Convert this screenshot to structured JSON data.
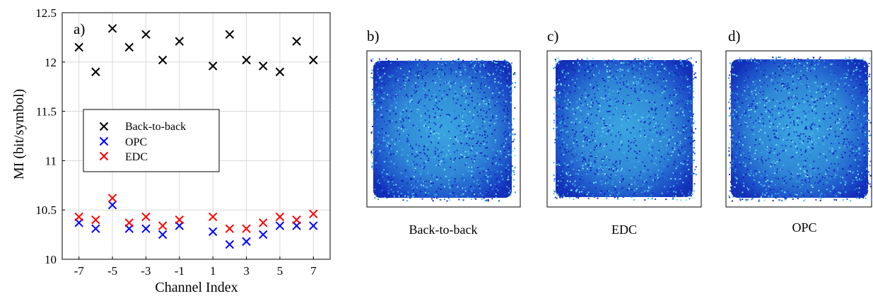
{
  "chart_data": [
    {
      "panel": "a)",
      "type": "scatter",
      "xlabel": "Channel Index",
      "ylabel": "MI (bit/symbol)",
      "xlim": [
        -8,
        8
      ],
      "ylim": [
        10,
        12.5
      ],
      "xticks": [
        -7,
        -5,
        -3,
        -1,
        1,
        3,
        5,
        7
      ],
      "yticks": [
        10,
        10.5,
        11,
        11.5,
        12,
        12.5
      ],
      "grid": true,
      "legend_position": "left-center",
      "series": [
        {
          "name": "Back-to-back",
          "color": "#000000",
          "marker": "x",
          "x": [
            -7,
            -6,
            -5,
            -4,
            -3,
            -2,
            -1,
            1,
            2,
            3,
            4,
            5,
            6,
            7
          ],
          "y": [
            12.15,
            11.9,
            12.34,
            12.15,
            12.28,
            12.02,
            12.21,
            11.96,
            12.28,
            12.02,
            11.96,
            11.9,
            12.21,
            12.02
          ]
        },
        {
          "name": "OPC",
          "color": "#0000ff",
          "marker": "x",
          "x": [
            -7,
            -6,
            -5,
            -4,
            -3,
            -2,
            -1,
            1,
            2,
            3,
            4,
            5,
            6,
            7
          ],
          "y": [
            10.37,
            10.31,
            10.55,
            10.31,
            10.31,
            10.25,
            10.34,
            10.28,
            10.15,
            10.18,
            10.25,
            10.34,
            10.34,
            10.34
          ]
        },
        {
          "name": "EDC",
          "color": "#ff0000",
          "marker": "x",
          "x": [
            -7,
            -6,
            -5,
            -4,
            -3,
            -2,
            -1,
            1,
            2,
            3,
            4,
            5,
            6,
            7
          ],
          "y": [
            10.43,
            10.4,
            10.62,
            10.37,
            10.43,
            10.34,
            10.4,
            10.43,
            10.31,
            10.31,
            10.37,
            10.43,
            10.4,
            10.46
          ]
        }
      ]
    },
    {
      "panel": "b)",
      "type": "heatmap",
      "caption": "Back-to-back"
    },
    {
      "panel": "c)",
      "type": "heatmap",
      "caption": "EDC"
    },
    {
      "panel": "d)",
      "type": "heatmap",
      "caption": "OPC"
    }
  ]
}
